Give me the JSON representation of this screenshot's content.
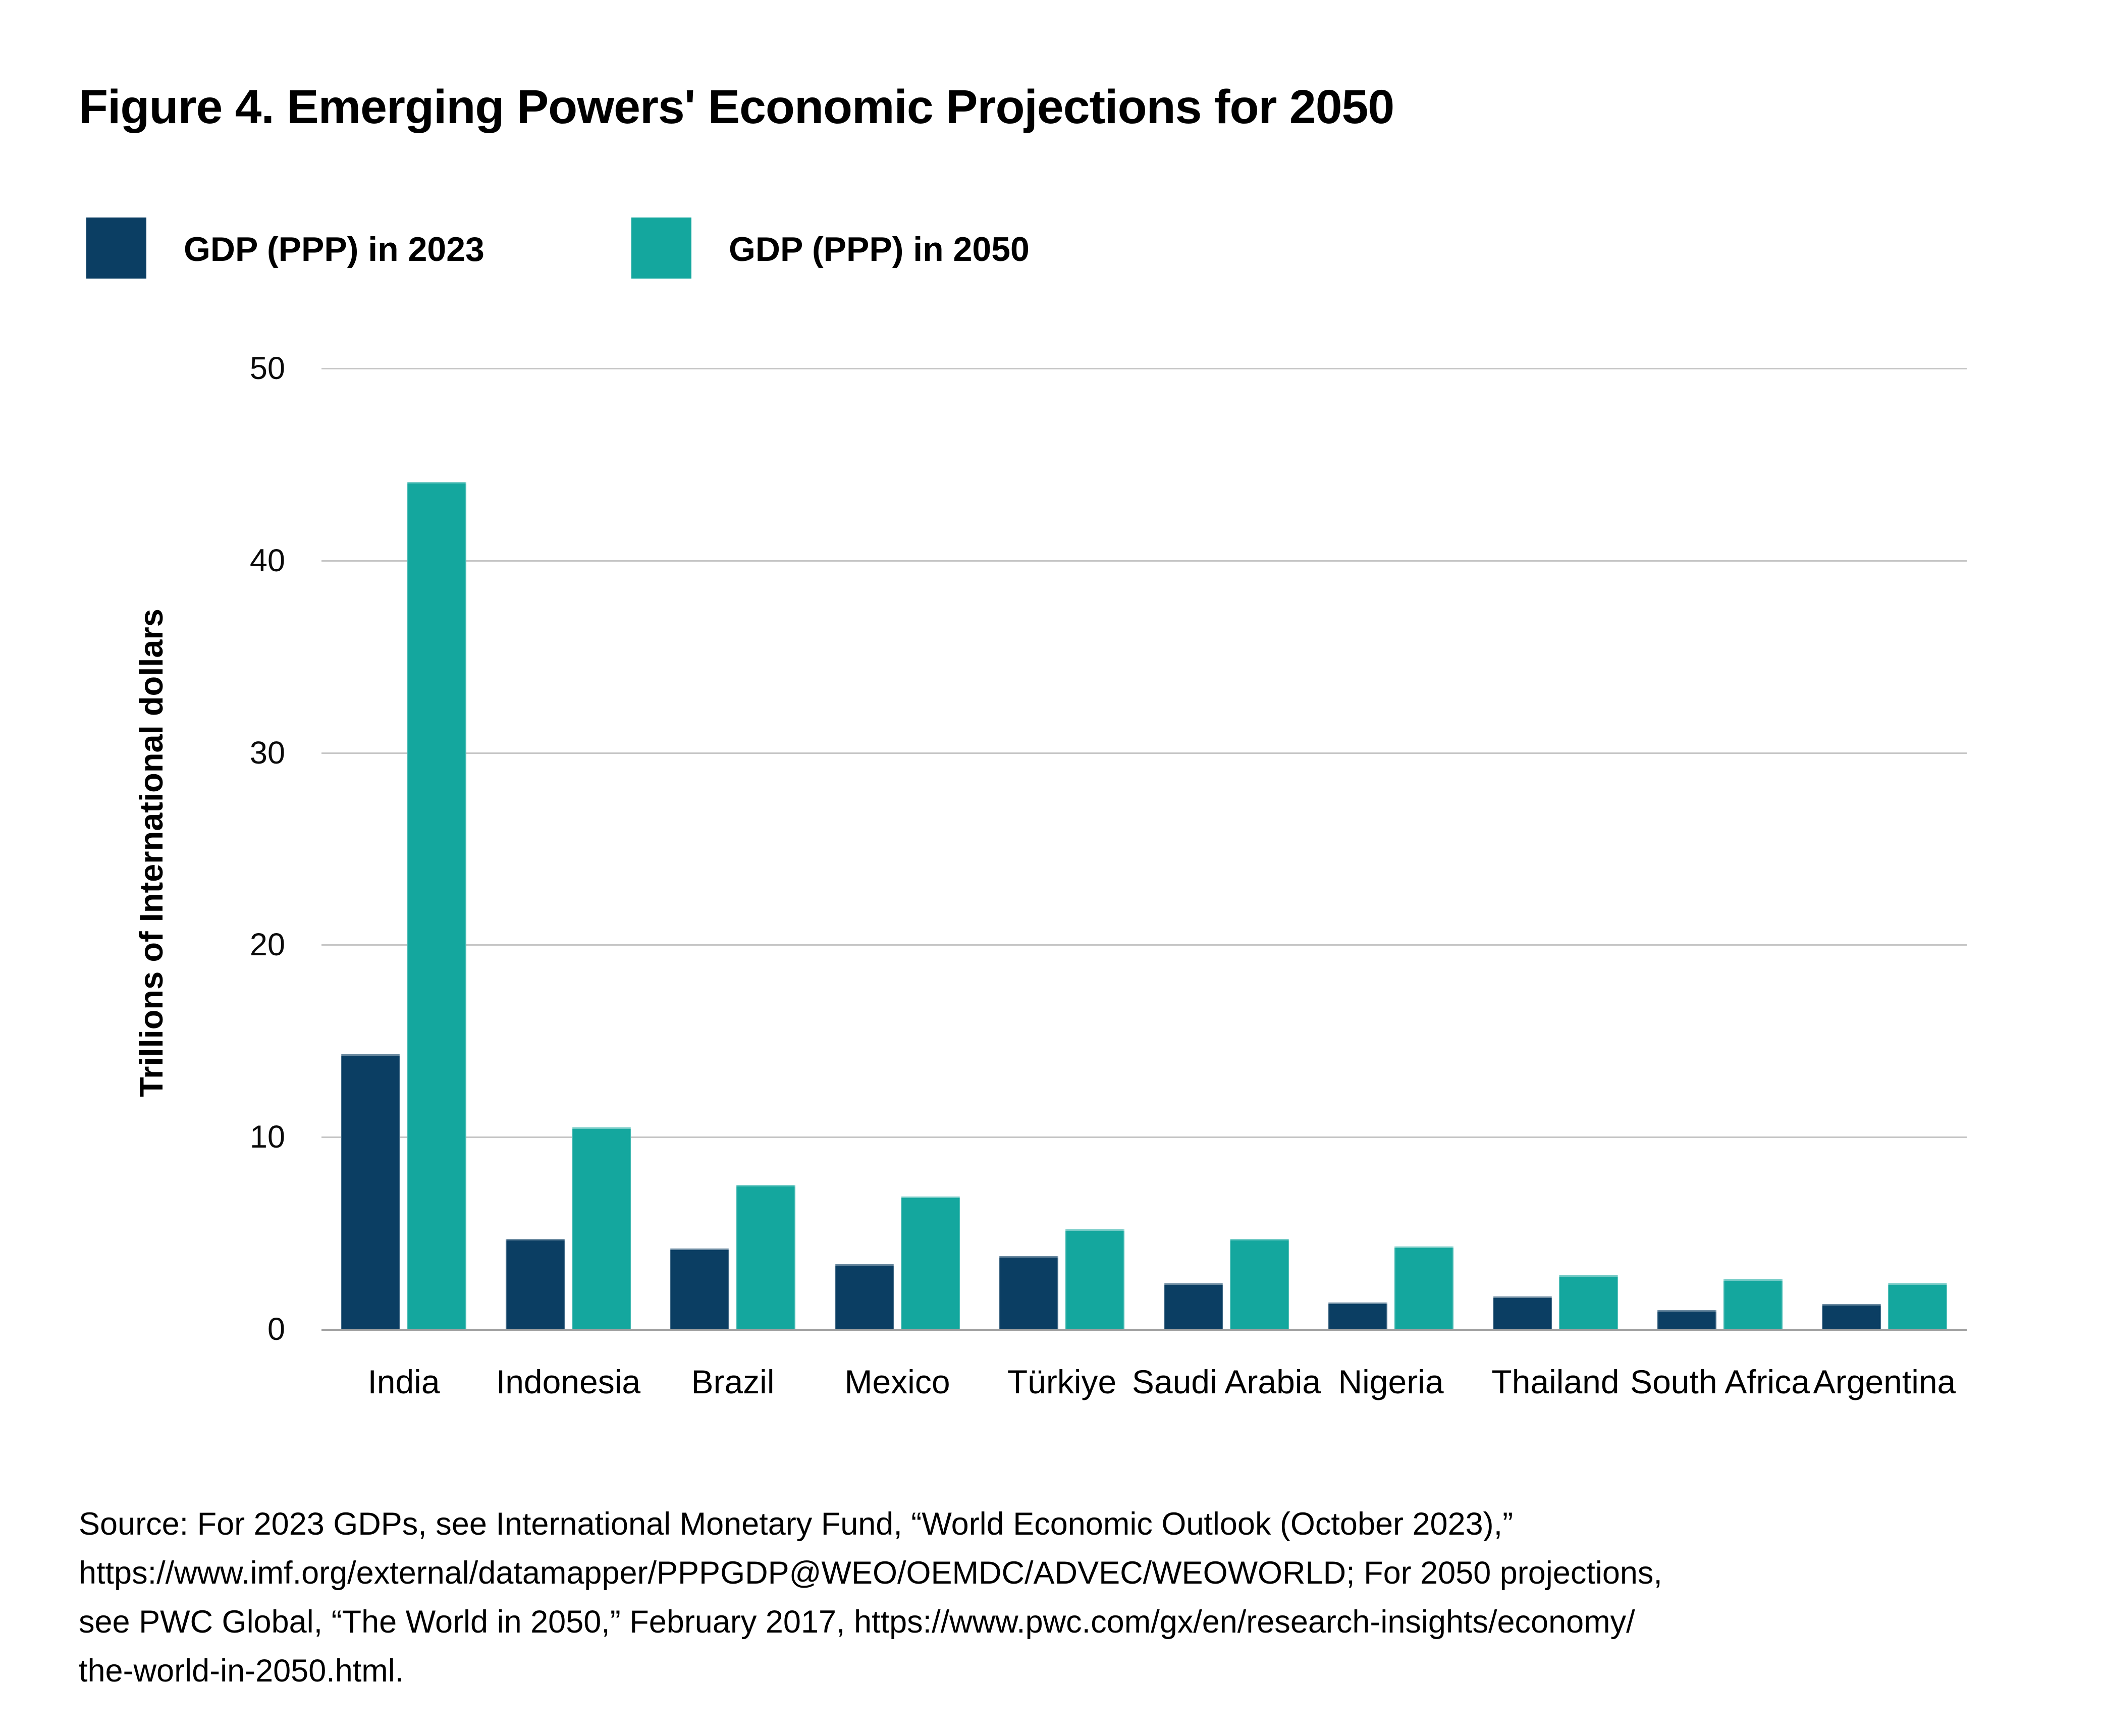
{
  "figure": {
    "title": "Figure 4. Emerging Powers' Economic Projections for 2050",
    "y_axis_title": "Trillions of International dollars",
    "legend": [
      {
        "label": "GDP (PPP) in 2023",
        "color": "#0b3e63"
      },
      {
        "label": "GDP (PPP) in 2050",
        "color": "#14a79e"
      }
    ],
    "source_lines": [
      "Source: For 2023 GDPs, see International Monetary Fund, “World Economic Outlook (October 2023),”",
      "https://www.imf.org/external/datamapper/PPPGDP@WEO/OEMDC/ADVEC/WEOWORLD; For 2050 projections,",
      "see PWC Global, “The World in 2050,” February 2017, https://www.pwc.com/gx/en/research-insights/economy/",
      "the-world-in-2050.html."
    ]
  },
  "chart_data": {
    "type": "bar",
    "title": "Figure 4. Emerging Powers' Economic Projections for 2050",
    "xlabel": "",
    "ylabel": "Trillions of International dollars",
    "ylim": [
      0,
      50
    ],
    "yticks": [
      0,
      10,
      20,
      30,
      40,
      50
    ],
    "grid": "horizontal-gridlines",
    "legend_position": "top-left",
    "categories": [
      "India",
      "Indonesia",
      "Brazil",
      "Mexico",
      "Türkiye",
      "Saudi Arabia",
      "Nigeria",
      "Thailand",
      "South Africa",
      "Argentina"
    ],
    "series": [
      {
        "name": "GDP (PPP) in 2023",
        "color": "#0b3e63",
        "values": [
          14.3,
          4.7,
          4.2,
          3.4,
          3.8,
          2.4,
          1.4,
          1.7,
          1.0,
          1.3
        ]
      },
      {
        "name": "GDP (PPP) in 2050",
        "color": "#14a79e",
        "values": [
          44.1,
          10.5,
          7.5,
          6.9,
          5.2,
          4.7,
          4.3,
          2.8,
          2.6,
          2.4
        ]
      }
    ],
    "colors": {
      "gridline": "#c6c6c6",
      "axis_line": "#a0a0a0",
      "text": "#000000"
    }
  }
}
